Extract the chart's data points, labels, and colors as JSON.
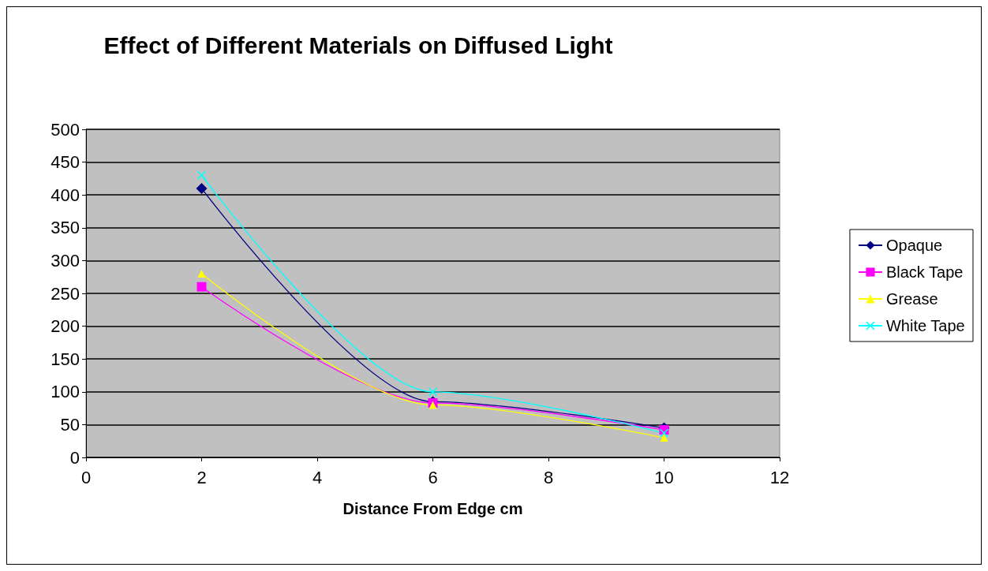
{
  "chart_data": {
    "type": "line",
    "title": "Effect of Different Materials on Diffused Light",
    "xlabel": "Distance From Edge cm",
    "x": [
      2,
      6,
      10
    ],
    "series": [
      {
        "name": "Opaque",
        "color": "#000080",
        "marker": "diamond",
        "values": [
          410,
          85,
          45
        ]
      },
      {
        "name": "Black Tape",
        "color": "#ff00ff",
        "marker": "square",
        "values": [
          260,
          83,
          42
        ]
      },
      {
        "name": "Grease",
        "color": "#ffff00",
        "marker": "triangle",
        "values": [
          280,
          80,
          30
        ]
      },
      {
        "name": "White Tape",
        "color": "#00ffff",
        "marker": "cross",
        "values": [
          430,
          100,
          37
        ]
      }
    ],
    "xlim": [
      0,
      12
    ],
    "xticks": [
      0,
      2,
      4,
      6,
      8,
      10,
      12
    ],
    "ylim": [
      0,
      500
    ],
    "yticks": [
      0,
      50,
      100,
      150,
      200,
      250,
      300,
      350,
      400,
      450,
      500
    ],
    "grid": "y",
    "legend": "right"
  }
}
